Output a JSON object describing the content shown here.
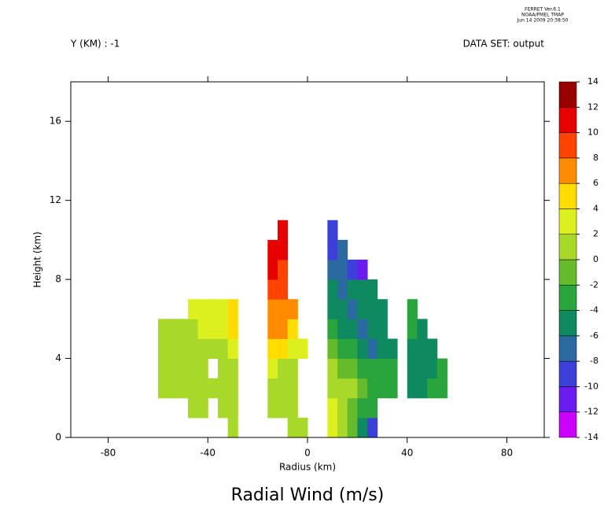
{
  "chart_data": {
    "type": "filled-contour",
    "title": "Radial Wind (m/s)",
    "header": {
      "program": "FERRET Ver.6.1",
      "org": "NOAA/PMEL TMAP",
      "date": "Jun 14 2009 20:38:50",
      "slice": "Y (KM) : -1",
      "dataset": "DATA SET: output"
    },
    "x_label": "Radius (km)",
    "y_label": "Height (km)",
    "xlim": [
      -95,
      95
    ],
    "ylim": [
      0,
      18
    ],
    "xticks": [
      -80,
      -40,
      0,
      40,
      80
    ],
    "yticks": [
      0,
      4,
      8,
      12,
      16
    ],
    "x": [
      -58,
      -54,
      -50,
      -46,
      -42,
      -38,
      -34,
      -30,
      -26,
      -22,
      -18,
      -14,
      -10,
      -6,
      -2,
      2,
      6,
      10,
      14,
      18,
      22,
      26,
      30,
      34,
      38,
      42,
      46,
      50,
      54,
      58
    ],
    "y": [
      0.5,
      1.5,
      2.5,
      3.5,
      4.5,
      5.5,
      6.5,
      7.5,
      8.5,
      9.5,
      10.5
    ],
    "z": [
      [
        null,
        null,
        null,
        null,
        null,
        null,
        null,
        1,
        null,
        null,
        null,
        null,
        null,
        1,
        1,
        null,
        null,
        3,
        1,
        -1,
        -5,
        -9,
        null,
        null,
        null,
        null,
        null,
        null,
        null,
        null
      ],
      [
        null,
        null,
        null,
        1,
        1,
        null,
        1,
        1,
        null,
        null,
        null,
        1,
        1,
        1,
        null,
        null,
        null,
        3,
        1,
        -1,
        -3,
        -3,
        null,
        null,
        null,
        null,
        null,
        null,
        null,
        null
      ],
      [
        1,
        1,
        1,
        1,
        1,
        1,
        1,
        1,
        null,
        null,
        null,
        1,
        1,
        1,
        null,
        null,
        null,
        1,
        1,
        1,
        -1,
        -3,
        -3,
        -3,
        null,
        -5,
        -5,
        -3,
        -3,
        null
      ],
      [
        1,
        1,
        1,
        1,
        1,
        null,
        1,
        1,
        null,
        null,
        null,
        3,
        1,
        1,
        null,
        null,
        null,
        1,
        -1,
        -1,
        -3,
        -3,
        -3,
        -3,
        null,
        -5,
        -5,
        -5,
        -3,
        null
      ],
      [
        1,
        1,
        1,
        1,
        1,
        1,
        1,
        3,
        null,
        null,
        null,
        5,
        5,
        3,
        3,
        null,
        null,
        -1,
        -3,
        -3,
        -5,
        -7,
        -5,
        -5,
        null,
        -5,
        -5,
        -5,
        null,
        null
      ],
      [
        1,
        1,
        1,
        1,
        3,
        3,
        3,
        5,
        null,
        null,
        null,
        7,
        7,
        5,
        null,
        null,
        null,
        -3,
        -5,
        -5,
        -7,
        -5,
        -5,
        null,
        null,
        -3,
        -5,
        null,
        null,
        null
      ],
      [
        null,
        null,
        null,
        3,
        3,
        3,
        3,
        5,
        null,
        null,
        null,
        7,
        7,
        7,
        null,
        null,
        null,
        -5,
        -5,
        -7,
        -5,
        -5,
        -5,
        null,
        null,
        -3,
        null,
        null,
        null,
        null
      ],
      [
        null,
        null,
        null,
        null,
        null,
        null,
        null,
        null,
        null,
        null,
        null,
        9,
        9,
        null,
        null,
        null,
        null,
        -5,
        -7,
        -5,
        -5,
        -5,
        null,
        null,
        null,
        null,
        null,
        null,
        null,
        null
      ],
      [
        null,
        null,
        null,
        null,
        null,
        null,
        null,
        null,
        null,
        null,
        null,
        11,
        9,
        null,
        null,
        null,
        null,
        -7,
        -7,
        -9,
        -11,
        null,
        null,
        null,
        null,
        null,
        null,
        null,
        null,
        null
      ],
      [
        null,
        null,
        null,
        null,
        null,
        null,
        null,
        null,
        null,
        null,
        null,
        11,
        11,
        null,
        null,
        null,
        null,
        -9,
        -7,
        null,
        null,
        null,
        null,
        null,
        null,
        null,
        null,
        null,
        null,
        null
      ],
      [
        null,
        null,
        null,
        null,
        null,
        null,
        null,
        null,
        null,
        null,
        null,
        null,
        11,
        null,
        null,
        null,
        null,
        -9,
        null,
        null,
        null,
        null,
        null,
        null,
        null,
        null,
        null,
        null,
        null,
        null
      ]
    ],
    "levels": [
      -14,
      -12,
      -10,
      -8,
      -6,
      -4,
      -2,
      0,
      2,
      4,
      6,
      8,
      10,
      12,
      14
    ],
    "colors": [
      "#cc00ff",
      "#6a1cf0",
      "#3c40d8",
      "#2a6aa0",
      "#0f8a60",
      "#2aa43c",
      "#66bb2c",
      "#a8d82a",
      "#dcf020",
      "#ffdd00",
      "#ff8c00",
      "#ff4400",
      "#e60000",
      "#990000"
    ]
  }
}
